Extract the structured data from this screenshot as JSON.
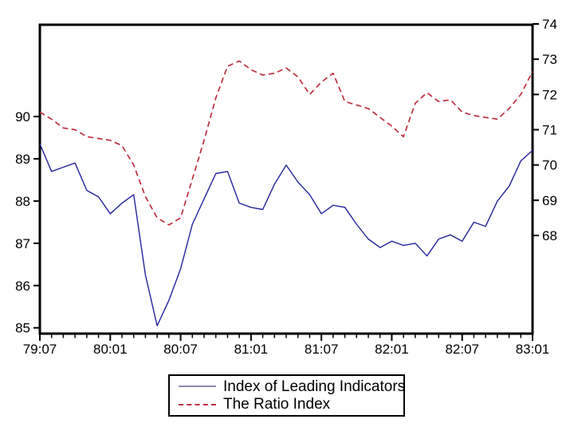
{
  "legend": {
    "items": [
      {
        "label": "Index of Leading Indicators",
        "style": "solid",
        "color": "#23239c"
      },
      {
        "label": "The Ratio Index",
        "style": "dashed",
        "color": "#bf2f3f"
      }
    ]
  },
  "chart_data": {
    "type": "line",
    "title": "",
    "xlabel": "",
    "ylabel_left": "",
    "ylabel_right": "",
    "grid": false,
    "legend_position": "bottom-center",
    "x_unit": "year:month",
    "x_tick_labels": [
      "79:07",
      "80:01",
      "80:07",
      "81:01",
      "81:07",
      "82:01",
      "82:07",
      "83:01"
    ],
    "x_labels": [
      "79:07",
      "79:08",
      "79:09",
      "79:10",
      "79:11",
      "79:12",
      "80:01",
      "80:02",
      "80:03",
      "80:04",
      "80:05",
      "80:06",
      "80:07",
      "80:08",
      "80:09",
      "80:10",
      "80:11",
      "80:12",
      "81:01",
      "81:02",
      "81:03",
      "81:04",
      "81:05",
      "81:06",
      "81:07",
      "81:08",
      "81:09",
      "81:10",
      "81:11",
      "81:12",
      "82:01",
      "82:02",
      "82:03",
      "82:04",
      "82:05",
      "82:06",
      "82:07",
      "82:08",
      "82:09",
      "82:10",
      "82:11",
      "82:12",
      "83:01"
    ],
    "left_axis": {
      "ticks": [
        90,
        89,
        88,
        87,
        86,
        85
      ],
      "series": "Index of Leading Indicators"
    },
    "right_axis": {
      "ticks": [
        74,
        73,
        72,
        71,
        70,
        69,
        68
      ],
      "series": "The Ratio Index"
    },
    "series": [
      {
        "name": "Index of Leading Indicators",
        "axis": "left",
        "color": "#23239c",
        "style": "solid",
        "values": [
          89.35,
          88.7,
          88.8,
          88.9,
          88.25,
          88.1,
          87.7,
          87.95,
          88.15,
          86.25,
          85.05,
          85.65,
          86.4,
          87.45,
          88.05,
          88.65,
          88.7,
          87.95,
          87.85,
          87.8,
          88.4,
          88.85,
          88.45,
          88.15,
          87.7,
          87.9,
          87.85,
          87.45,
          87.1,
          86.9,
          87.05,
          86.95,
          87.0,
          86.7,
          87.1,
          87.2,
          87.05,
          87.5,
          87.4,
          88.0,
          88.35,
          88.95,
          89.2
        ]
      },
      {
        "name": "The Ratio Index",
        "axis": "right",
        "color": "#bf2f3f",
        "style": "dashed",
        "values": [
          71.5,
          71.3,
          71.05,
          71.0,
          70.8,
          70.75,
          70.7,
          70.55,
          70.0,
          69.1,
          68.5,
          68.3,
          68.5,
          69.6,
          70.7,
          71.9,
          72.8,
          72.95,
          72.7,
          72.55,
          72.6,
          72.75,
          72.5,
          72.0,
          72.35,
          72.6,
          71.8,
          71.7,
          71.6,
          71.35,
          71.1,
          70.8,
          71.75,
          72.05,
          71.8,
          71.85,
          71.5,
          71.4,
          71.35,
          71.3,
          71.6,
          72.0,
          72.65
        ]
      }
    ]
  }
}
